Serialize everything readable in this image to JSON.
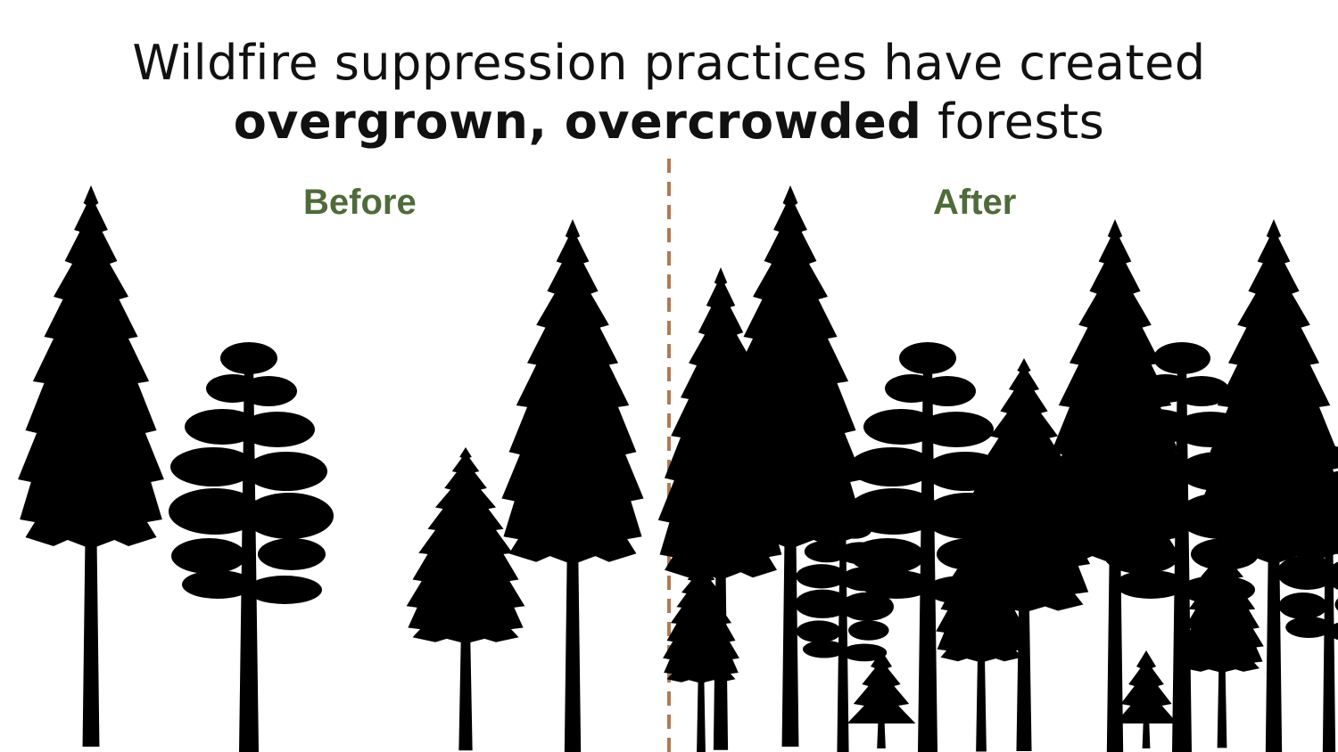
{
  "title": {
    "line1": "Wildfire suppression practices have created",
    "line2_bold": "overgrown, overcrowded",
    "line2_rest": " forests"
  },
  "panels": {
    "before_label": "Before",
    "after_label": "After"
  },
  "colors": {
    "label_green": "#4e6b39",
    "divider_brown": "#b07a52",
    "tree": "#000000"
  },
  "icons": {
    "fir": "fir-tree-icon",
    "pine": "pine-tree-icon",
    "sapling": "sapling-icon"
  }
}
